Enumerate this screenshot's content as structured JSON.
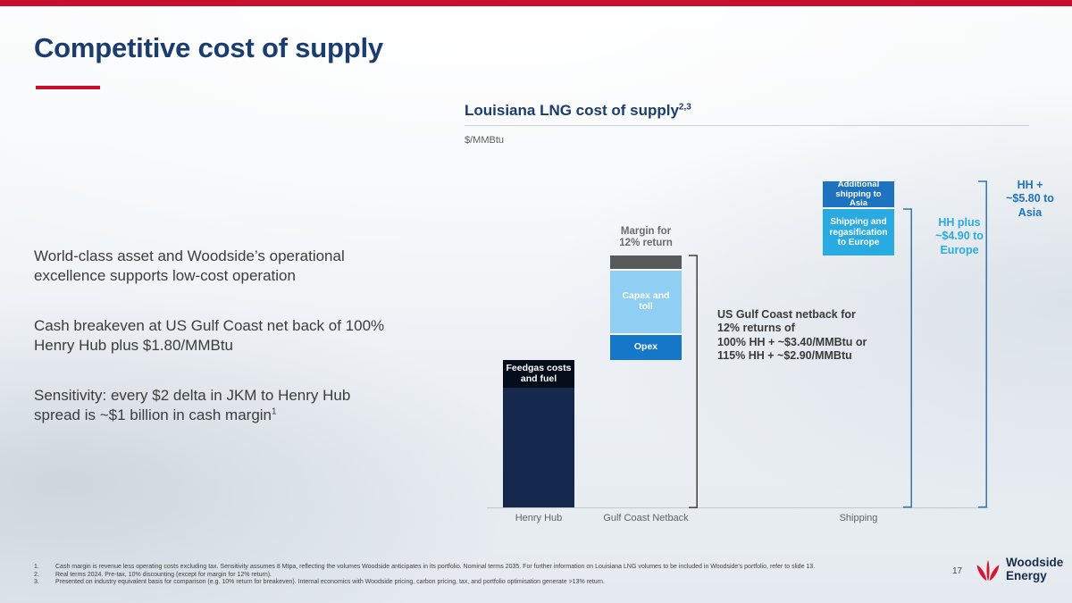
{
  "slide": {
    "title": "Competitive cost of supply",
    "page_number": "17",
    "logo": {
      "line1": "Woodside",
      "line2": "Energy"
    }
  },
  "colors": {
    "accent_red": "#C8102E",
    "brand_navy": "#1B3C6E",
    "cyan": "#29ABE2",
    "mid_blue": "#1E73C0"
  },
  "left_panel": {
    "paragraphs": [
      "World-class asset and Woodside’s operational excellence supports low-cost operation",
      "Cash breakeven at US Gulf Coast net back of 100% Henry Hub plus $1.80/MMBtu",
      "Sensitivity: every $2 delta in JKM to Henry Hub spread is ~$1 billion in cash margin"
    ],
    "paragraph3_superscript": "1"
  },
  "chart": {
    "title": "Louisiana LNG cost of supply",
    "title_superscript": "2,3",
    "ylabel": "$/MMBtu"
  },
  "chart_data": {
    "type": "bar",
    "subtype": "floating-stacked-waterfall",
    "title": "Louisiana LNG cost of supply",
    "title_superscript": "2,3",
    "unit": "$/MMBtu",
    "ylim": [
      0,
      11.3
    ],
    "grid": false,
    "categories": [
      "Henry Hub",
      "Gulf Coast Netback",
      "Shipping"
    ],
    "bars": [
      {
        "category": "Henry Hub",
        "base": 0,
        "segments": [
          {
            "id": "feedgas",
            "label": "Feedgas costs\nand fuel",
            "value": 4.8,
            "color": "#15294E",
            "label_style": "overlay-top"
          }
        ]
      },
      {
        "category": "Gulf Coast Netback",
        "base": 4.8,
        "segments": [
          {
            "id": "opex",
            "label": "Opex",
            "value": 0.8,
            "color": "#1577C8"
          },
          {
            "id": "capex",
            "label": "Capex and\ntoll",
            "value": 2.1,
            "color": "#8FCFF3"
          },
          {
            "id": "margin",
            "label": "Margin for\n12% return",
            "value": 0.5,
            "color": "#58595B",
            "label_style": "above"
          }
        ]
      },
      {
        "category": "Shipping",
        "base": 8.2,
        "segments": [
          {
            "id": "ship-europe",
            "label": "Shipping and\nregasification\nto Europe",
            "value": 1.5,
            "color": "#29ABE2",
            "font_size": "10px"
          },
          {
            "id": "ship-asia",
            "label": "Additional\nshipping to\nAsia",
            "value": 0.9,
            "color": "#1E73C0",
            "font_size": "9.5px"
          }
        ]
      }
    ],
    "annotations": [
      {
        "text": "US Gulf Coast netback for\n12% returns of\n100% HH + ~$3.40/MMBtu or\n115% HH + ~$2.90/MMBtu",
        "top_value": 8.2,
        "bottom_value": 0,
        "bracket_color": "#3F3F3F",
        "text_color": "#3A3A3A"
      },
      {
        "text": "HH plus\n~$4.90 to\nEurope",
        "top_value": 9.7,
        "bottom_value": 0,
        "bracket_color": "#2E74B5",
        "text_color": "#29ABE2"
      },
      {
        "text": "HH +\n~$5.80 to\nAsia",
        "top_value": 10.6,
        "bottom_value": 0,
        "bracket_color": "#2E74B5",
        "text_color": "#1E73C0"
      }
    ],
    "value_scale_note": "No numeric axis shown; segment values estimated in $/MMBtu using labelled anchors: netback = HH + ~$3.40, Europe = HH + ~$4.90, Asia = HH + ~$5.80, Henry Hub bar ≈ 4.8"
  },
  "footnotes": [
    {
      "num": "1.",
      "text": "Cash margin is revenue less operating costs excluding tax. Sensitivity assumes 8 Mtpa, reflecting the volumes Woodside anticipates in its portfolio. Nominal terms 2035. For further information on Louisiana LNG volumes to be included in Woodside’s portfolio, refer to slide 13."
    },
    {
      "num": "2.",
      "text": "Real terms 2024. Pre-tax, 10% discounting (except for margin for 12% return)."
    },
    {
      "num": "3.",
      "text": "Presented on industry equivalent basis for comparison (e.g. 10% return for breakeven). Internal economics with Woodside pricing, carbon pricing, tax, and portfolio optimisation generate >13% return."
    }
  ]
}
